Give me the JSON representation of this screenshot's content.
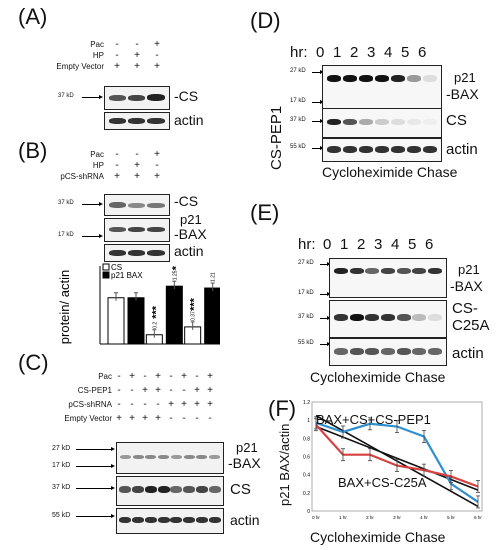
{
  "panels": {
    "A": {
      "label": "(A)",
      "rows": [
        {
          "name": "Pac",
          "signs": [
            "-",
            "-",
            "+"
          ]
        },
        {
          "name": "HP",
          "signs": [
            "-",
            "+",
            "-"
          ]
        },
        {
          "name": "Empty Vector",
          "signs": [
            "+",
            "+",
            "+"
          ]
        }
      ],
      "kd": "37 kD",
      "blot_labels": [
        "-CS",
        "actin"
      ]
    },
    "B": {
      "label": "(B)",
      "rows": [
        {
          "name": "Pac",
          "signs": [
            "-",
            "-",
            "+"
          ]
        },
        {
          "name": "HP",
          "signs": [
            "-",
            "+",
            "-"
          ]
        },
        {
          "name": "pCS-shRNA",
          "signs": [
            "+",
            "+",
            "+"
          ]
        }
      ],
      "kd_top": "37 kD",
      "kd_mid": "17 kD",
      "blot_labels": [
        "-CS",
        "p21",
        "BAX",
        "actin"
      ]
    },
    "C": {
      "label": "(C)",
      "rows": [
        {
          "name": "Pac",
          "signs": [
            "-",
            "+",
            "-",
            "+",
            "-",
            "+",
            "-",
            "+"
          ]
        },
        {
          "name": "CS-PEP1",
          "signs": [
            "-",
            "-",
            "+",
            "+",
            "-",
            "-",
            "+",
            "+"
          ]
        },
        {
          "name": "pCS-shRNA",
          "signs": [
            "-",
            "-",
            "-",
            "-",
            "+",
            "+",
            "+",
            "+"
          ]
        },
        {
          "name": "Empty Vector",
          "signs": [
            "+",
            "+",
            "+",
            "+",
            "-",
            "-",
            "-",
            "-"
          ]
        }
      ],
      "kd": [
        "27 kD",
        "17 kD",
        "37 kD",
        "55 kD"
      ],
      "blot_labels": [
        "p21",
        "BAX",
        "CS",
        "actin"
      ]
    },
    "D": {
      "label": "(D)",
      "hr_label": "hr:",
      "hours": [
        "0",
        "1",
        "2",
        "3",
        "4",
        "5",
        "6"
      ],
      "side": "CS-PEP1",
      "kd": [
        "27 kD",
        "17 kD",
        "37 kD",
        "55 kD"
      ],
      "blot_labels": [
        "p21",
        "BAX",
        "CS",
        "actin"
      ],
      "caption": "Cycloheximide Chase"
    },
    "E": {
      "label": "(E)",
      "hr_label": "hr:",
      "hours": [
        "0",
        "1",
        "2",
        "3",
        "4",
        "5",
        "6"
      ],
      "kd": [
        "27 kD",
        "17 kD",
        "37 kD",
        "55 kD"
      ],
      "blot_labels": [
        "p21",
        "BAX",
        "CS-",
        "C25A",
        "actin"
      ],
      "caption": "Cycloheximide Chase"
    },
    "F": {
      "label": "(F)",
      "ylabel": "p21 BAX/actin",
      "xlabel": "Cycloheximide Chase",
      "annot1": "BAX+CS+CS-PEP1",
      "annot2": "BAX+CS-C25A"
    }
  },
  "colors": {
    "blue": "#2d8fce",
    "red": "#d6413f",
    "black": "#111111"
  },
  "chart_data": [
    {
      "type": "bar",
      "ylabel": "protein/ actin",
      "ylim": [
        0,
        1.6
      ],
      "legend": [
        "CS",
        "p21 BAX"
      ],
      "legend_placement": "top-left",
      "categories": [
        "1",
        "2",
        "3"
      ],
      "series": [
        {
          "name": "CS",
          "values": [
            1.0,
            0.2,
            0.37
          ]
        },
        {
          "name": "p21 BAX",
          "values": [
            1.0,
            1.25,
            1.21
          ]
        }
      ],
      "data_labels": {
        "CS": [
          "",
          "0.2",
          "0.37"
        ],
        "p21 BAX": [
          "",
          "1.25",
          "1.21"
        ]
      },
      "significance": {
        "CS": [
          "",
          "***",
          "***"
        ],
        "p21 BAX": [
          "",
          "*",
          ""
        ]
      }
    },
    {
      "type": "line",
      "ylim": [
        0,
        1.2
      ],
      "yticks": [
        "0",
        "0.2",
        "0.4",
        "0.6",
        "0.8",
        "1",
        "1.2"
      ],
      "categories": [
        "0 hr",
        "1 hr",
        "2 hr",
        "3 hr",
        "4 hr",
        "5 hr",
        "6 hr"
      ],
      "series": [
        {
          "name": "BAX+CS+CS-PEP1",
          "values": [
            0.97,
            0.87,
            0.96,
            0.93,
            0.82,
            0.3,
            0.1
          ]
        },
        {
          "name": "BAX+CS-C25A",
          "values": [
            0.95,
            0.62,
            0.62,
            0.5,
            0.45,
            0.38,
            0.27
          ]
        }
      ],
      "trendlines": [
        [
          1.05,
          0.05
        ],
        [
          0.93,
          0.23
        ]
      ]
    }
  ]
}
